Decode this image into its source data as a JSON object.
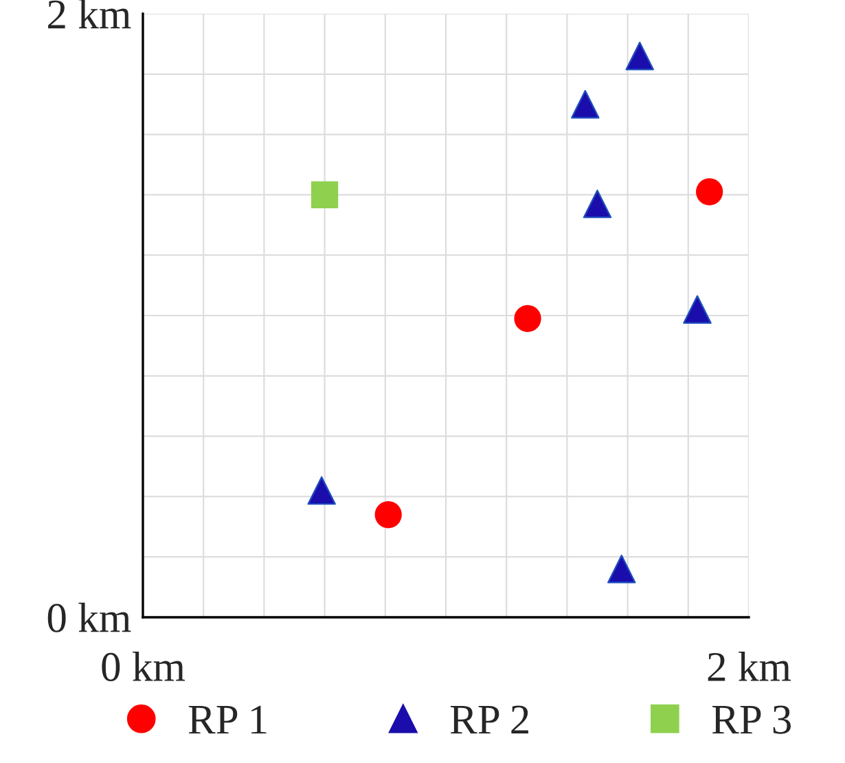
{
  "chart_data": {
    "type": "scatter",
    "series": [
      {
        "name": "RP 1",
        "color": "#ff0000",
        "marker": "circle",
        "x": [
          1.87,
          1.27,
          0.81
        ],
        "values": [
          1.41,
          0.99,
          0.34
        ]
      },
      {
        "name": "RP 2",
        "color": "#1a0dab",
        "marker": "triangle",
        "x": [
          1.64,
          1.46,
          1.5,
          1.83,
          0.59,
          1.58
        ],
        "values": [
          1.86,
          1.7,
          1.37,
          1.02,
          0.42,
          0.16
        ]
      },
      {
        "name": "RP 3",
        "color": "#8fd14f",
        "marker": "square",
        "x": [
          0.6
        ],
        "values": [
          1.4
        ]
      }
    ],
    "xlim": [
      0,
      2
    ],
    "ylim": [
      0,
      2
    ],
    "xticks": [
      {
        "value": 0,
        "label": "0 km"
      },
      {
        "value": 0.2,
        "label": null
      },
      {
        "value": 0.4,
        "label": null
      },
      {
        "value": 0.6,
        "label": null
      },
      {
        "value": 0.8,
        "label": null
      },
      {
        "value": 1.0,
        "label": null
      },
      {
        "value": 1.2,
        "label": null
      },
      {
        "value": 1.4,
        "label": null
      },
      {
        "value": 1.6,
        "label": null
      },
      {
        "value": 1.8,
        "label": null
      },
      {
        "value": 2,
        "label": "2 km"
      }
    ],
    "yticks": [
      {
        "value": 0,
        "label": "0 km"
      },
      {
        "value": 0.2,
        "label": null
      },
      {
        "value": 0.4,
        "label": null
      },
      {
        "value": 0.6,
        "label": null
      },
      {
        "value": 0.8,
        "label": null
      },
      {
        "value": 1.0,
        "label": null
      },
      {
        "value": 1.2,
        "label": null
      },
      {
        "value": 1.4,
        "label": null
      },
      {
        "value": 1.6,
        "label": null
      },
      {
        "value": 1.8,
        "label": null
      },
      {
        "value": 2,
        "label": "2 km"
      }
    ],
    "grid": true,
    "legend": "bottom"
  }
}
